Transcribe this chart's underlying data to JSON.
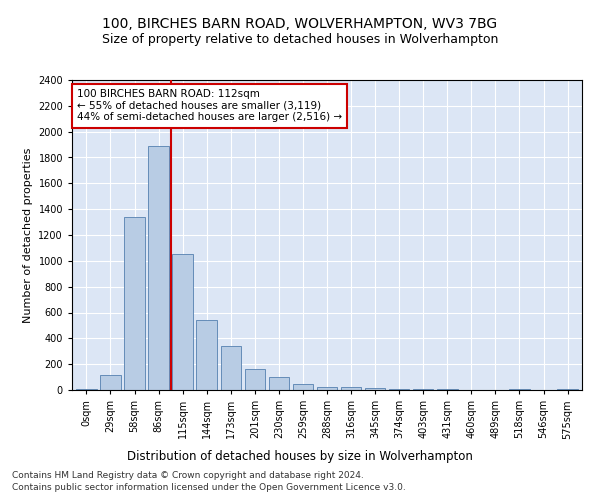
{
  "title": "100, BIRCHES BARN ROAD, WOLVERHAMPTON, WV3 7BG",
  "subtitle": "Size of property relative to detached houses in Wolverhampton",
  "xlabel": "Distribution of detached houses by size in Wolverhampton",
  "ylabel": "Number of detached properties",
  "categories": [
    "0sqm",
    "29sqm",
    "58sqm",
    "86sqm",
    "115sqm",
    "144sqm",
    "173sqm",
    "201sqm",
    "230sqm",
    "259sqm",
    "288sqm",
    "316sqm",
    "345sqm",
    "374sqm",
    "403sqm",
    "431sqm",
    "460sqm",
    "489sqm",
    "518sqm",
    "546sqm",
    "575sqm"
  ],
  "values": [
    5,
    120,
    1340,
    1890,
    1050,
    540,
    340,
    160,
    100,
    50,
    25,
    20,
    15,
    10,
    5,
    10,
    0,
    0,
    5,
    0,
    5
  ],
  "bar_color": "#b8cce4",
  "bar_edge_color": "#5580b0",
  "vline_x_index": 4,
  "vline_color": "#cc0000",
  "annotation_text": "100 BIRCHES BARN ROAD: 112sqm\n← 55% of detached houses are smaller (3,119)\n44% of semi-detached houses are larger (2,516) →",
  "annotation_box_color": "#ffffff",
  "annotation_box_edge": "#cc0000",
  "ylim": [
    0,
    2400
  ],
  "yticks": [
    0,
    200,
    400,
    600,
    800,
    1000,
    1200,
    1400,
    1600,
    1800,
    2000,
    2200,
    2400
  ],
  "background_color": "#dce6f5",
  "grid_color": "#ffffff",
  "footer1": "Contains HM Land Registry data © Crown copyright and database right 2024.",
  "footer2": "Contains public sector information licensed under the Open Government Licence v3.0.",
  "title_fontsize": 10,
  "subtitle_fontsize": 9,
  "xlabel_fontsize": 8.5,
  "ylabel_fontsize": 8,
  "tick_fontsize": 7,
  "annotation_fontsize": 7.5,
  "footer_fontsize": 6.5
}
